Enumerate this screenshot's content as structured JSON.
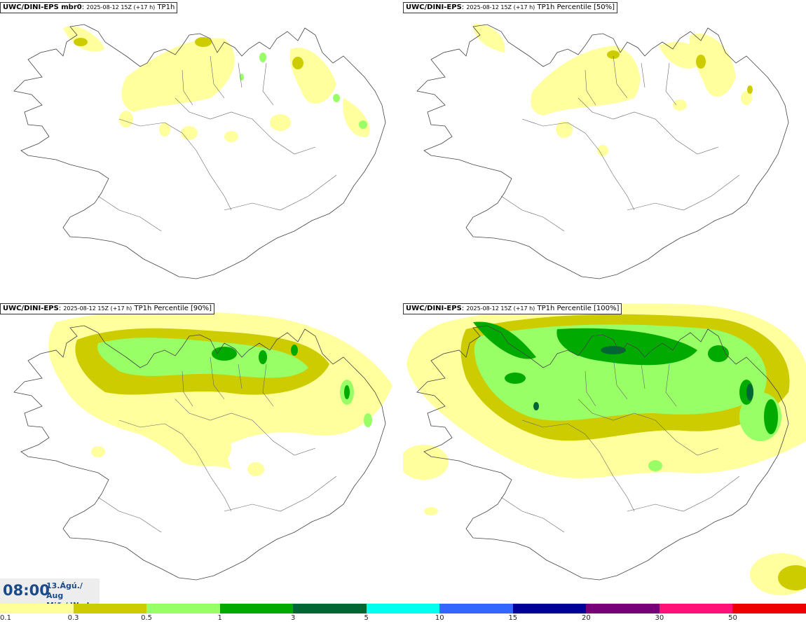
{
  "panels": [
    {
      "model": "UWC/DINI-EPS mbr0",
      "run": "2025-08-12 15Z (+17 h)",
      "field": "TP1h"
    },
    {
      "model": "UWC/DINI-EPS",
      "run": "2025-08-12 15Z (+17 h)",
      "field": "TP1h Percentile [50%]"
    },
    {
      "model": "UWC/DINI-EPS",
      "run": "2025-08-12 15Z (+17 h)",
      "field": "TP1h Percentile [90%]"
    },
    {
      "model": "UWC/DINI-EPS",
      "run": "2025-08-12 15Z (+17 h)",
      "field": "TP1h Percentile [100%]"
    }
  ],
  "valid_time": {
    "time": "08:00",
    "date_line1": "13.Ágú./ Aug",
    "date_line2": "Mið./ Wed"
  },
  "colorbar": {
    "ticks": [
      "0.1",
      "0.3",
      "0.5",
      "1",
      "3",
      "5",
      "10",
      "15",
      "20",
      "30",
      "50"
    ],
    "colors": [
      "#ffff99",
      "#cccc00",
      "#99ff66",
      "#00aa00",
      "#006633",
      "#00ffee",
      "#3366ff",
      "#000099",
      "#770077",
      "#ff1177",
      "#ee0000"
    ]
  }
}
